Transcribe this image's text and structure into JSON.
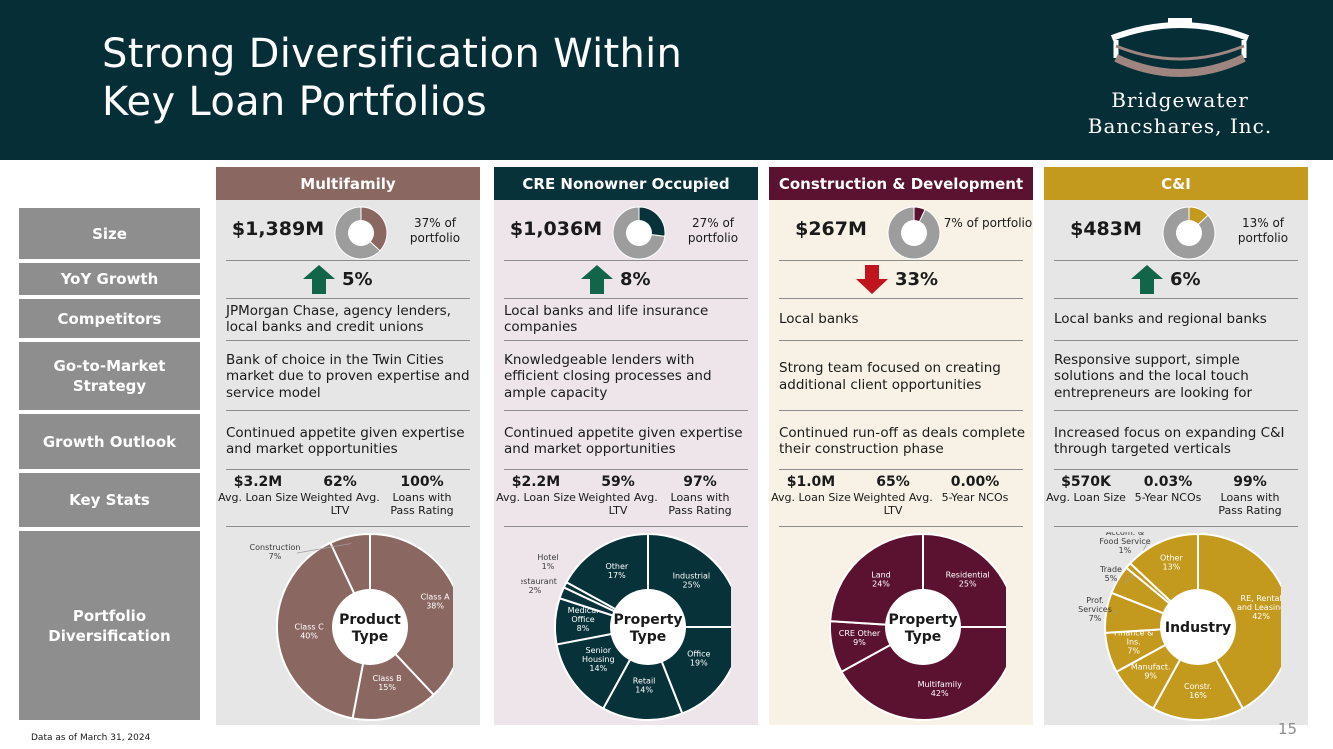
{
  "header": {
    "title_line1": "Strong Diversification Within",
    "title_line2": "Key Loan Portfolios",
    "logo_line1": "Bridgewater",
    "logo_line2": "Bancshares, Inc."
  },
  "rows": [
    "Size",
    "YoY Growth",
    "Competitors",
    "Go-to-Market Strategy",
    "Growth Outlook",
    "Key Stats",
    "Portfolio Diversification"
  ],
  "colors": {
    "navy": "#062e36",
    "mauve": "#8b6761",
    "teal": "#07323a",
    "plum": "#5b1231",
    "gold": "#c49a1e",
    "gray": "#9d9d9d",
    "green": "#13654a",
    "red": "#c0151c"
  },
  "columns": [
    {
      "title": "Multifamily",
      "color": "#8b6761",
      "bg": "#e6e6e6",
      "size": "$1,389M",
      "portfolio_pct": "37% of portfolio",
      "donut_fraction": 0.37,
      "growth_dir": "up",
      "growth": "5%",
      "competitors": "JPMorgan Chase, agency lenders, local banks and credit unions",
      "strategy": "Bank of choice in the Twin Cities market due to proven expertise and service model",
      "outlook": "Continued appetite given expertise and market opportunities",
      "stats": [
        {
          "value": "$3.2M",
          "label": "Avg. Loan Size"
        },
        {
          "value": "62%",
          "label": "Weighted Avg. LTV"
        },
        {
          "value": "100%",
          "label": "Loans with Pass Rating"
        }
      ]
    },
    {
      "title": "CRE Nonowner Occupied",
      "color": "#07323a",
      "bg": "#ede5ea",
      "size": "$1,036M",
      "portfolio_pct": "27% of portfolio",
      "donut_fraction": 0.27,
      "growth_dir": "up",
      "growth": "8%",
      "competitors": "Local banks and life insurance companies",
      "strategy": "Knowledgeable lenders with efficient closing processes and ample capacity",
      "outlook": "Continued appetite given expertise and market opportunities",
      "stats": [
        {
          "value": "$2.2M",
          "label": "Avg. Loan Size"
        },
        {
          "value": "59%",
          "label": "Weighted Avg. LTV"
        },
        {
          "value": "97%",
          "label": "Loans with Pass Rating"
        }
      ]
    },
    {
      "title": "Construction & Development",
      "color": "#5b1231",
      "bg": "#f8f2e6",
      "size": "$267M",
      "portfolio_pct": "7% of portfolio",
      "donut_fraction": 0.07,
      "growth_dir": "down",
      "growth": "33%",
      "competitors": "Local banks",
      "strategy": "Strong team focused on creating additional client opportunities",
      "outlook": "Continued run-off as deals complete their construction phase",
      "stats": [
        {
          "value": "$1.0M",
          "label": "Avg. Loan Size"
        },
        {
          "value": "65%",
          "label": "Weighted Avg. LTV"
        },
        {
          "value": "0.00%",
          "label": "5-Year NCOs"
        }
      ]
    },
    {
      "title": "C&I",
      "color": "#c49a1e",
      "bg": "#e6e6e6",
      "size": "$483M",
      "portfolio_pct": "13% of portfolio",
      "donut_fraction": 0.13,
      "growth_dir": "up",
      "growth": "6%",
      "competitors": "Local banks and regional banks",
      "strategy": "Responsive support, simple solutions and the local touch entrepreneurs are looking for",
      "outlook": "Increased focus on expanding C&I through targeted verticals",
      "stats": [
        {
          "value": "$570K",
          "label": "Avg. Loan Size"
        },
        {
          "value": "0.03%",
          "label": "5-Year NCOs"
        },
        {
          "value": "99%",
          "label": "Loans with Pass Rating"
        }
      ]
    }
  ],
  "chart_data": [
    {
      "type": "pie",
      "title": "Product Type",
      "color": "#8b6761",
      "slices": [
        {
          "label": "Class A",
          "value": 38,
          "display": "38%"
        },
        {
          "label": "Class B",
          "value": 15,
          "display": "15%"
        },
        {
          "label": "Class C",
          "value": 40,
          "display": "40%"
        },
        {
          "label": "Construction",
          "value": 7,
          "display": "7%"
        }
      ]
    },
    {
      "type": "pie",
      "title": "Property Type",
      "color": "#07323a",
      "slices": [
        {
          "label": "Industrial",
          "value": 25,
          "display": "25%"
        },
        {
          "label": "Office",
          "value": 19,
          "display": "19%"
        },
        {
          "label": "Retail",
          "value": 14,
          "display": "14%"
        },
        {
          "label": "Senior Housing",
          "value": 14,
          "display": "14%"
        },
        {
          "label": "Medical Office",
          "value": 8,
          "display": "8%"
        },
        {
          "label": "Restaurant",
          "value": 2,
          "display": "2%"
        },
        {
          "label": "Hotel",
          "value": 1,
          "display": "1%"
        },
        {
          "label": "Other",
          "value": 17,
          "display": "17%"
        }
      ]
    },
    {
      "type": "pie",
      "title": "Property Type",
      "color": "#5b1231",
      "slices": [
        {
          "label": "Residential",
          "value": 25,
          "display": "25%"
        },
        {
          "label": "Multifamily",
          "value": 42,
          "display": "42%"
        },
        {
          "label": "CRE Other",
          "value": 9,
          "display": "9%"
        },
        {
          "label": "Land",
          "value": 24,
          "display": "24%"
        }
      ]
    },
    {
      "type": "pie",
      "title": "Industry",
      "color": "#c49a1e",
      "slices": [
        {
          "label": "RE, Rental and Leasing",
          "value": 42,
          "display": "42%"
        },
        {
          "label": "Constr.",
          "value": 16,
          "display": "16%"
        },
        {
          "label": "Manufact.",
          "value": 9,
          "display": "9%"
        },
        {
          "label": "Finance & Ins.",
          "value": 7,
          "display": "7%"
        },
        {
          "label": "Prof. Services",
          "value": 7,
          "display": "7%"
        },
        {
          "label": "Trade",
          "value": 5,
          "display": "5%"
        },
        {
          "label": "Accom. & Food Service",
          "value": 1,
          "display": "1%"
        },
        {
          "label": "Other",
          "value": 13,
          "display": "13%"
        }
      ]
    }
  ],
  "footnote": "Data as of March 31, 2024",
  "page_number": "15"
}
